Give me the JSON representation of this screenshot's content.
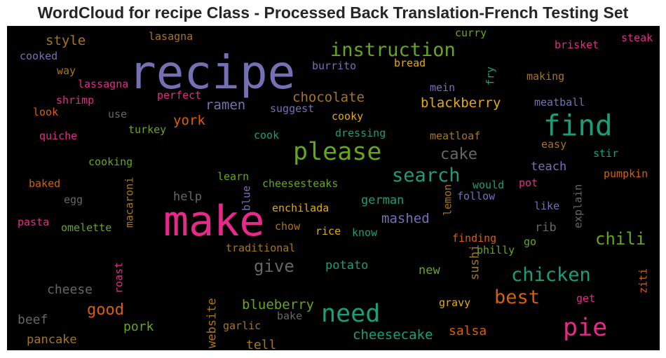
{
  "chart_data": {
    "type": "wordcloud",
    "title": "WordCloud for recipe Class - Processed Back Translation-French Testing Set",
    "background": "#000000",
    "colormap": "Dark2",
    "colors": {
      "purple": "#7570b3",
      "pink": "#e7298a",
      "green": "#1b9e77",
      "olive": "#66a61e",
      "orange": "#d95f02",
      "gold": "#e6ab02",
      "brown": "#a6761d",
      "gray": "#666666"
    },
    "words": [
      {
        "text": "recipe",
        "color": "purple"
      },
      {
        "text": "make",
        "color": "pink"
      },
      {
        "text": "find",
        "color": "green"
      },
      {
        "text": "please",
        "color": "olive"
      },
      {
        "text": "instruction",
        "color": "olive"
      },
      {
        "text": "need",
        "color": "green"
      },
      {
        "text": "pie",
        "color": "pink"
      },
      {
        "text": "search",
        "color": "green"
      },
      {
        "text": "chicken",
        "color": "green"
      },
      {
        "text": "best",
        "color": "orange"
      },
      {
        "text": "chili",
        "color": "olive"
      },
      {
        "text": "give",
        "color": "gray"
      },
      {
        "text": "cake",
        "color": "gray"
      },
      {
        "text": "good",
        "color": "orange"
      },
      {
        "text": "chocolate",
        "color": "brown"
      },
      {
        "text": "blackberry",
        "color": "gold"
      },
      {
        "text": "ramen",
        "color": "purple"
      },
      {
        "text": "york",
        "color": "orange"
      },
      {
        "text": "german",
        "color": "green"
      },
      {
        "text": "mashed",
        "color": "purple"
      },
      {
        "text": "teach",
        "color": "purple"
      },
      {
        "text": "blueberry",
        "color": "olive"
      },
      {
        "text": "cheesecake",
        "color": "green"
      },
      {
        "text": "potato",
        "color": "green"
      },
      {
        "text": "salsa",
        "color": "orange"
      },
      {
        "text": "tell",
        "color": "brown"
      },
      {
        "text": "pork",
        "color": "olive"
      },
      {
        "text": "pancake",
        "color": "brown"
      },
      {
        "text": "beef",
        "color": "gray"
      },
      {
        "text": "cheese",
        "color": "gray"
      },
      {
        "text": "website",
        "color": "brown"
      },
      {
        "text": "sushi",
        "color": "brown"
      },
      {
        "text": "style",
        "color": "brown"
      },
      {
        "text": "help",
        "color": "gray"
      },
      {
        "text": "rib",
        "color": "gray"
      },
      {
        "text": "new",
        "color": "olive"
      },
      {
        "text": "cooky",
        "color": "gold"
      },
      {
        "text": "dressing",
        "color": "green"
      },
      {
        "text": "meatloaf",
        "color": "brown"
      },
      {
        "text": "meatball",
        "color": "purple"
      },
      {
        "text": "making",
        "color": "brown"
      },
      {
        "text": "brisket",
        "color": "pink"
      },
      {
        "text": "steak",
        "color": "pink"
      },
      {
        "text": "curry",
        "color": "olive"
      },
      {
        "text": "bread",
        "color": "gold"
      },
      {
        "text": "burrito",
        "color": "purple"
      },
      {
        "text": "lasagna",
        "color": "brown"
      },
      {
        "text": "cooked",
        "color": "purple"
      },
      {
        "text": "way",
        "color": "brown"
      },
      {
        "text": "lassagna",
        "color": "pink"
      },
      {
        "text": "perfect",
        "color": "pink"
      },
      {
        "text": "mein",
        "color": "purple"
      },
      {
        "text": "fry",
        "color": "green"
      },
      {
        "text": "shrimp",
        "color": "pink"
      },
      {
        "text": "look",
        "color": "orange"
      },
      {
        "text": "use",
        "color": "gray"
      },
      {
        "text": "suggest",
        "color": "purple"
      },
      {
        "text": "quiche",
        "color": "pink"
      },
      {
        "text": "turkey",
        "color": "olive"
      },
      {
        "text": "cook",
        "color": "green"
      },
      {
        "text": "easy",
        "color": "brown"
      },
      {
        "text": "stir",
        "color": "green"
      },
      {
        "text": "pumpkin",
        "color": "orange"
      },
      {
        "text": "cooking",
        "color": "olive"
      },
      {
        "text": "learn",
        "color": "olive"
      },
      {
        "text": "cheesesteaks",
        "color": "olive"
      },
      {
        "text": "would",
        "color": "green"
      },
      {
        "text": "follow",
        "color": "purple"
      },
      {
        "text": "pot",
        "color": "pink"
      },
      {
        "text": "like",
        "color": "purple"
      },
      {
        "text": "explain",
        "color": "gray"
      },
      {
        "text": "baked",
        "color": "orange"
      },
      {
        "text": "macaroni",
        "color": "brown"
      },
      {
        "text": "egg",
        "color": "gray"
      },
      {
        "text": "blue",
        "color": "purple"
      },
      {
        "text": "lemon",
        "color": "brown"
      },
      {
        "text": "enchilada",
        "color": "gold"
      },
      {
        "text": "pasta",
        "color": "pink"
      },
      {
        "text": "omelette",
        "color": "olive"
      },
      {
        "text": "chow",
        "color": "brown"
      },
      {
        "text": "rice",
        "color": "gold"
      },
      {
        "text": "know",
        "color": "green"
      },
      {
        "text": "finding",
        "color": "orange"
      },
      {
        "text": "go",
        "color": "olive"
      },
      {
        "text": "philly",
        "color": "olive"
      },
      {
        "text": "traditional",
        "color": "brown"
      },
      {
        "text": "roast",
        "color": "pink"
      },
      {
        "text": "ziti",
        "color": "orange"
      },
      {
        "text": "gravy",
        "color": "gold"
      },
      {
        "text": "get",
        "color": "pink"
      },
      {
        "text": "bake",
        "color": "gray"
      },
      {
        "text": "garlic",
        "color": "brown"
      }
    ]
  }
}
